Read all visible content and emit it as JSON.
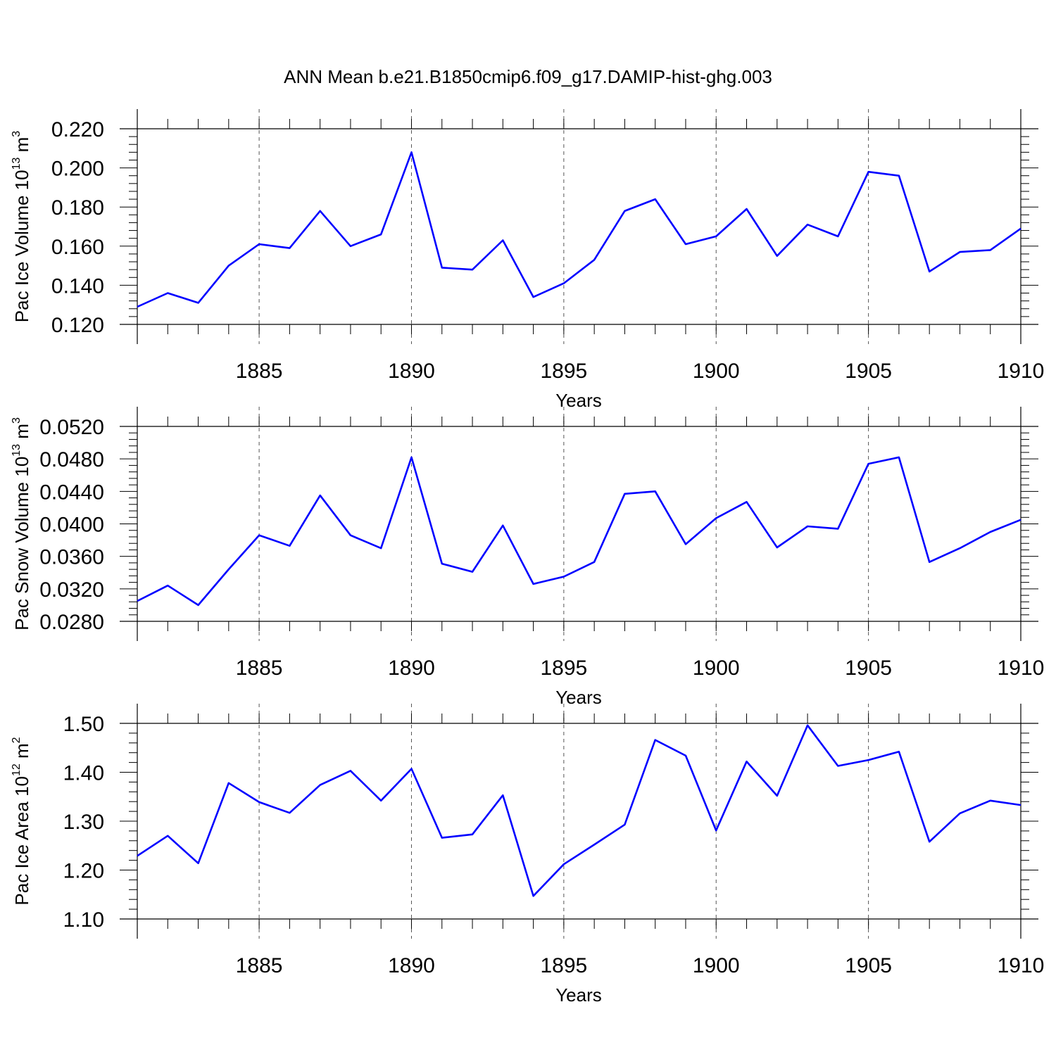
{
  "title": "ANN Mean b.e21.B1850cmip6.f09_g17.DAMIP-hist-ghg.003",
  "line_color": "#0000ff",
  "chart_data": [
    {
      "type": "line",
      "ylabel": {
        "main": "Pac Ice Volume 10",
        "exp": "13",
        "unit": " m",
        "unit_exp": "3"
      },
      "xlabel": "Years",
      "xlim": [
        1881,
        1910
      ],
      "ylim": [
        0.12,
        0.22
      ],
      "yticks": [
        "0.120",
        "0.140",
        "0.160",
        "0.180",
        "0.200",
        "0.220"
      ],
      "xticks": [
        "1885",
        "1890",
        "1895",
        "1900",
        "1905",
        "1910"
      ],
      "x": [
        1881,
        1882,
        1883,
        1884,
        1885,
        1886,
        1887,
        1888,
        1889,
        1890,
        1891,
        1892,
        1893,
        1894,
        1895,
        1896,
        1897,
        1898,
        1899,
        1900,
        1901,
        1902,
        1903,
        1904,
        1905,
        1906,
        1907,
        1908,
        1909,
        1910
      ],
      "values": [
        0.129,
        0.136,
        0.131,
        0.15,
        0.161,
        0.159,
        0.178,
        0.16,
        0.166,
        0.208,
        0.149,
        0.148,
        0.163,
        0.134,
        0.141,
        0.153,
        0.178,
        0.184,
        0.161,
        0.165,
        0.179,
        0.155,
        0.171,
        0.165,
        0.198,
        0.196,
        0.147,
        0.157,
        0.158,
        0.169
      ]
    },
    {
      "type": "line",
      "ylabel": {
        "main": "Pac Snow Volume 10",
        "exp": "13",
        "unit": " m",
        "unit_exp": "3"
      },
      "xlabel": "Years",
      "xlim": [
        1881,
        1910
      ],
      "ylim": [
        0.028,
        0.052
      ],
      "yticks": [
        "0.0280",
        "0.0320",
        "0.0360",
        "0.0400",
        "0.0440",
        "0.0480",
        "0.0520"
      ],
      "xticks": [
        "1885",
        "1890",
        "1895",
        "1900",
        "1905",
        "1910"
      ],
      "x": [
        1881,
        1882,
        1883,
        1884,
        1885,
        1886,
        1887,
        1888,
        1889,
        1890,
        1891,
        1892,
        1893,
        1894,
        1895,
        1896,
        1897,
        1898,
        1899,
        1900,
        1901,
        1902,
        1903,
        1904,
        1905,
        1906,
        1907,
        1908,
        1909,
        1910
      ],
      "values": [
        0.0305,
        0.0324,
        0.03,
        0.0344,
        0.0386,
        0.0373,
        0.0435,
        0.0386,
        0.037,
        0.0482,
        0.0351,
        0.0341,
        0.0398,
        0.0326,
        0.0335,
        0.0353,
        0.0437,
        0.044,
        0.0375,
        0.0407,
        0.0427,
        0.0371,
        0.0397,
        0.0394,
        0.0474,
        0.0482,
        0.0353,
        0.037,
        0.039,
        0.0405
      ]
    },
    {
      "type": "line",
      "ylabel": {
        "main": "Pac Ice Area 10",
        "exp": "12",
        "unit": " m",
        "unit_exp": "2"
      },
      "xlabel": "Years",
      "xlim": [
        1881,
        1910
      ],
      "ylim": [
        1.1,
        1.5
      ],
      "yticks": [
        "1.10",
        "1.20",
        "1.30",
        "1.40",
        "1.50"
      ],
      "xticks": [
        "1885",
        "1890",
        "1895",
        "1900",
        "1905",
        "1910"
      ],
      "x": [
        1881,
        1882,
        1883,
        1884,
        1885,
        1886,
        1887,
        1888,
        1889,
        1890,
        1891,
        1892,
        1893,
        1894,
        1895,
        1896,
        1897,
        1898,
        1899,
        1900,
        1901,
        1902,
        1903,
        1904,
        1905,
        1906,
        1907,
        1908,
        1909,
        1910
      ],
      "values": [
        1.229,
        1.27,
        1.214,
        1.378,
        1.339,
        1.317,
        1.374,
        1.403,
        1.342,
        1.407,
        1.266,
        1.273,
        1.353,
        1.147,
        1.212,
        1.252,
        1.293,
        1.466,
        1.434,
        1.281,
        1.422,
        1.352,
        1.496,
        1.413,
        1.425,
        1.442,
        1.258,
        1.316,
        1.342,
        1.333
      ]
    }
  ]
}
